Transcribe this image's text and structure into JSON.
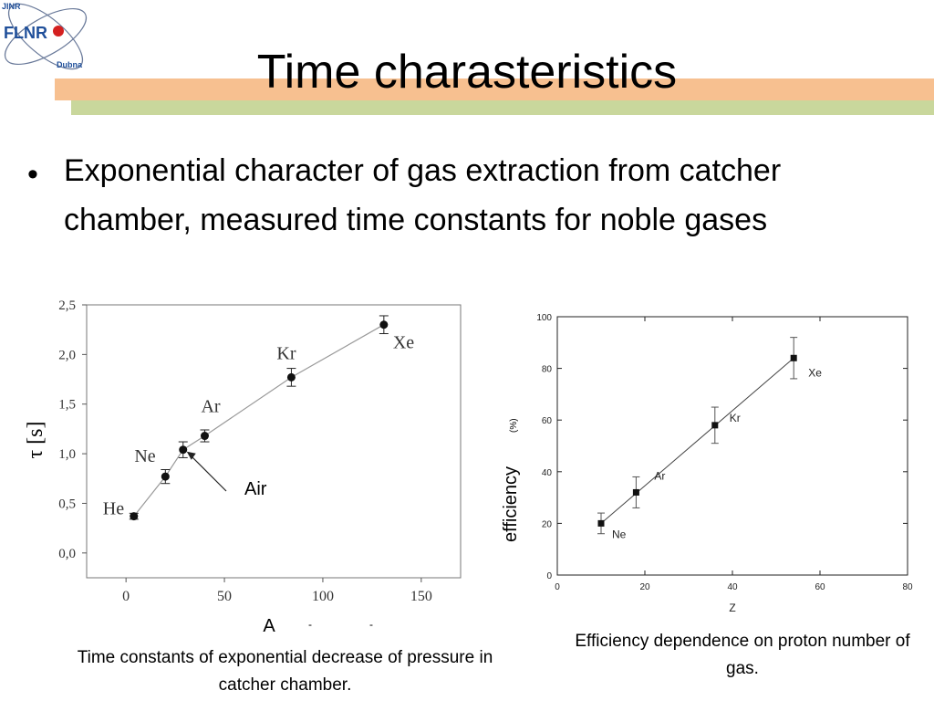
{
  "slide": {
    "title": "Time charasteristics",
    "bullet": "Exponential character of gas extraction from catcher chamber, measured time constants for noble gases",
    "caption_left": "Time constants of exponential decrease of pressure in catcher chamber.",
    "caption_right": "Efficiency dependence on proton number of gas.",
    "logo": {
      "top_text": "JINR",
      "mid_text": "FLNR",
      "bottom_text": "Dubna"
    }
  },
  "colors": {
    "bar_orange": "#f7c090",
    "bar_green": "#c9d79c",
    "logo_blue": "#1f4f9a",
    "logo_red": "#d42020"
  },
  "chart_data": [
    {
      "type": "scatter",
      "title": "",
      "xlabel": "A",
      "xlabel_extra": [
        "-",
        "-"
      ],
      "ylabel": "τ [s]",
      "xlim": [
        -20,
        170
      ],
      "ylim": [
        -0.25,
        2.5
      ],
      "xticks": [
        0,
        50,
        100,
        150
      ],
      "yticks": [
        0.0,
        0.5,
        1.0,
        1.5,
        2.0,
        2.5
      ],
      "ytick_labels": [
        "0,0",
        "0,5",
        "1,0",
        "1,5",
        "2,0",
        "2,5"
      ],
      "points": [
        {
          "label": "He",
          "x": 4,
          "y": 0.37,
          "err": 0.03
        },
        {
          "label": "Ne",
          "x": 20,
          "y": 0.77,
          "err": 0.07
        },
        {
          "label": "",
          "x": 29,
          "y": 1.04,
          "err": 0.08
        },
        {
          "label": "Ar",
          "x": 40,
          "y": 1.18,
          "err": 0.06
        },
        {
          "label": "Kr",
          "x": 84,
          "y": 1.77,
          "err": 0.09
        },
        {
          "label": "Xe",
          "x": 131,
          "y": 2.3,
          "err": 0.09
        }
      ],
      "annotation": {
        "text": "Air",
        "x": 29,
        "y": 1.04
      },
      "grid": false
    },
    {
      "type": "scatter",
      "title": "",
      "xlabel": "Z",
      "ylabel": "efficiency",
      "ylabel_unit": "(%)",
      "xlim": [
        0,
        80
      ],
      "ylim": [
        0,
        100
      ],
      "xticks": [
        0,
        20,
        40,
        60,
        80
      ],
      "yticks": [
        0,
        20,
        40,
        60,
        80,
        100
      ],
      "points": [
        {
          "label": "Ne",
          "x": 10,
          "y": 20,
          "err": 4
        },
        {
          "label": "Ar",
          "x": 18,
          "y": 32,
          "err": 6
        },
        {
          "label": "Kr",
          "x": 36,
          "y": 58,
          "err": 7
        },
        {
          "label": "Xe",
          "x": 54,
          "y": 84,
          "err": 8
        }
      ],
      "grid": false
    }
  ]
}
